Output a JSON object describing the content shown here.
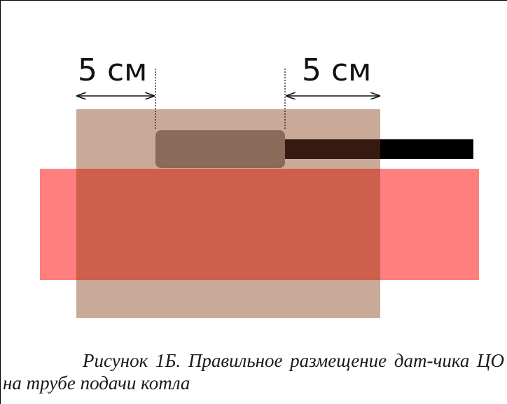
{
  "diagram": {
    "dimension_left": "5 см",
    "dimension_right": "5 см"
  },
  "caption": {
    "text": "Рисунок 1Б. Правильное размещение дат-чика ЦО на трубе подачи котла"
  },
  "colors": {
    "insulation": "#c9aa98",
    "pipe": "#ff7f7f",
    "pipe_overlap": "#ce5f4c",
    "sensor": "#8a6a58",
    "cable": "#000000",
    "cable_overlap": "#341a10"
  },
  "icons": {
    "arrow_left": "double-headed-arrow",
    "arrow_right": "double-headed-arrow"
  }
}
